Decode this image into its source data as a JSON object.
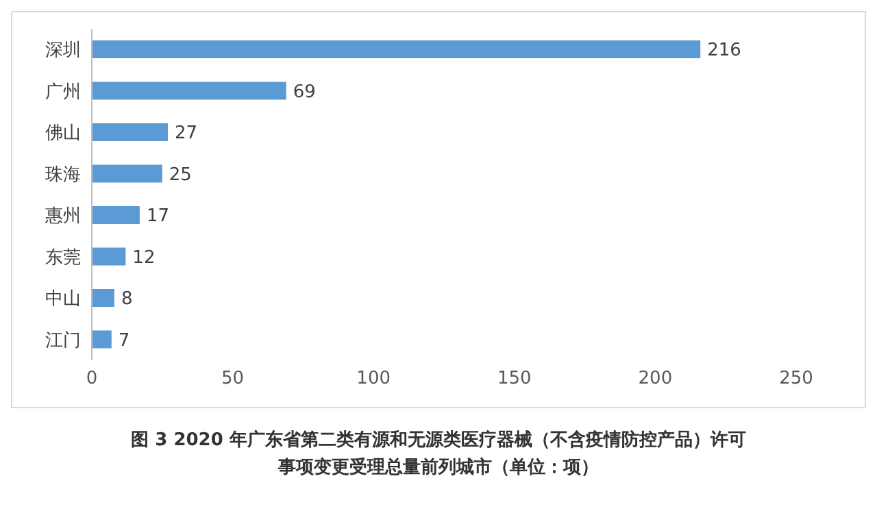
{
  "chart_data": {
    "type": "bar",
    "orientation": "horizontal",
    "title": "图 3 2020 年广东省第二类有源和无源类医疗器械（不含疫情防控产品）许可事项变更受理总量前列城市（单位：项）",
    "categories": [
      "深圳",
      "广州",
      "佛山",
      "珠海",
      "惠州",
      "东莞",
      "中山",
      "江门"
    ],
    "values": [
      216,
      69,
      27,
      25,
      17,
      12,
      8,
      7
    ],
    "color": "#5b9bd5",
    "xlim": [
      0,
      250
    ],
    "xticks": [
      0,
      50,
      100,
      150,
      200,
      250
    ],
    "data_labels": true
  }
}
